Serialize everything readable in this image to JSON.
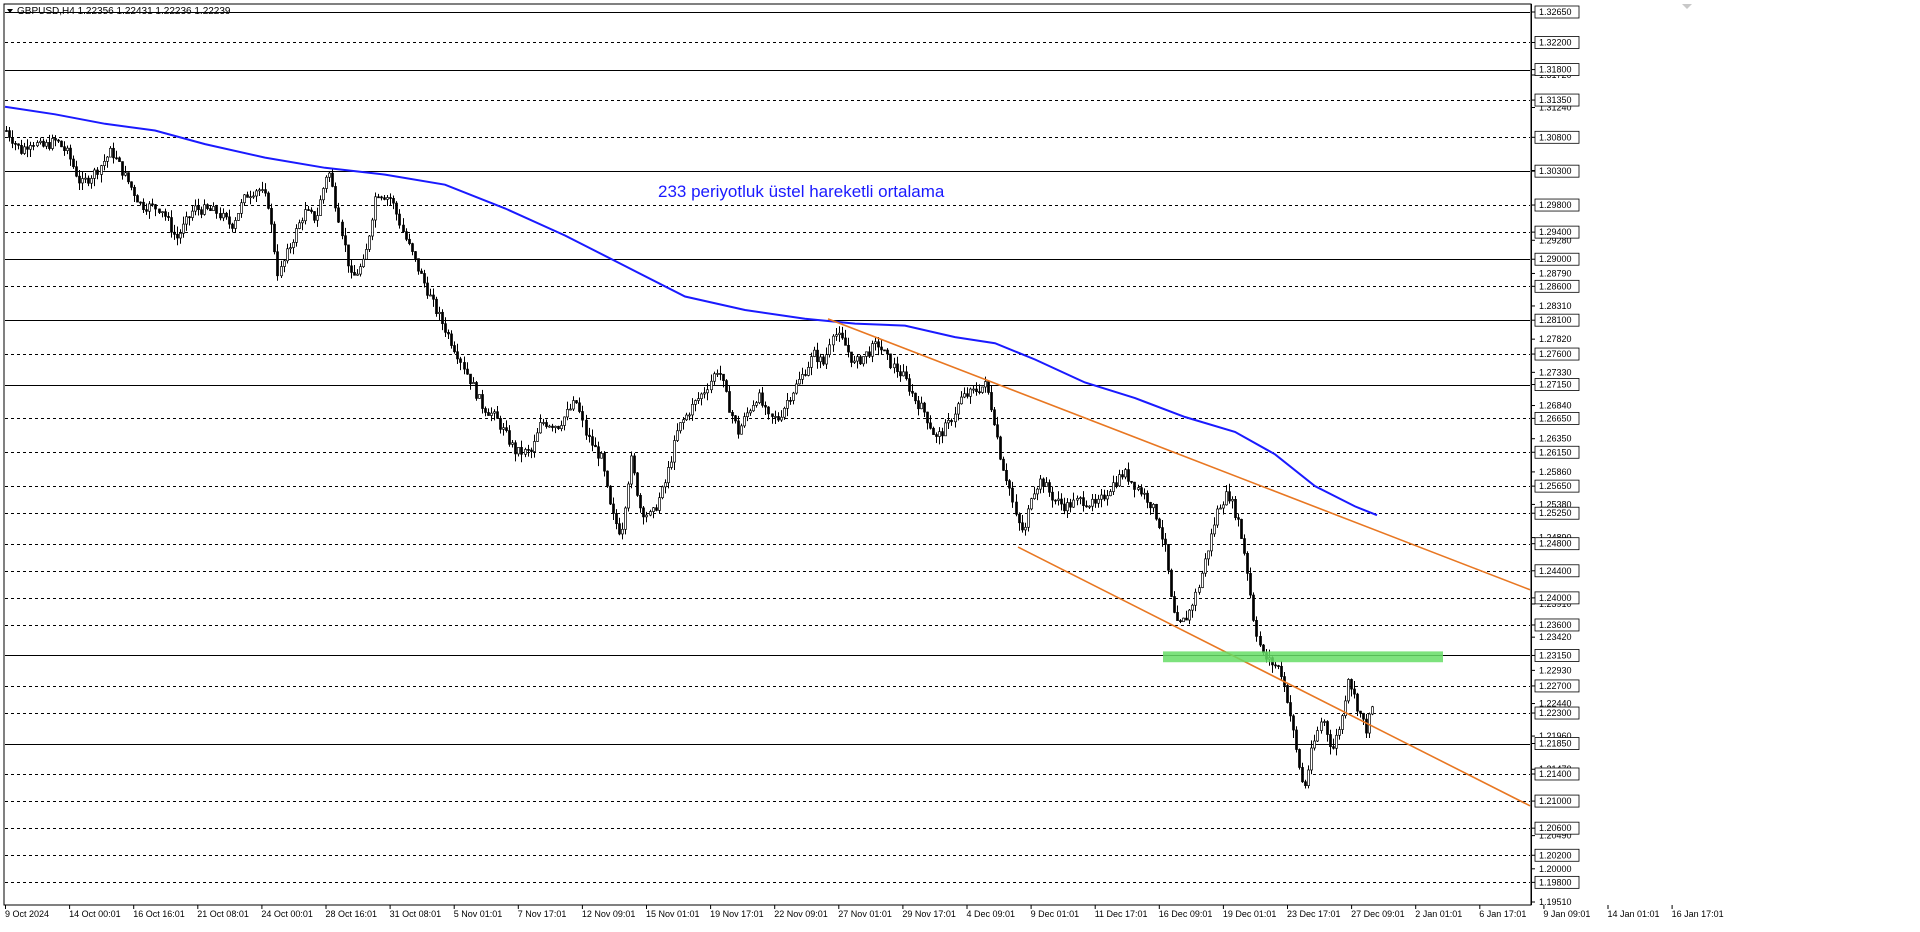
{
  "header": {
    "symbol": "GBPUSD,H4",
    "ohlc": "1.22356 1.22431 1.22236 1.22239",
    "text": "GBPUSD,H4  1.22356 1.22431 1.22236 1.22239"
  },
  "annotations": {
    "ema_text": "233 periyotluk üstel hareketli ortalama"
  },
  "colors": {
    "background": "#ffffff",
    "candle": "#000000",
    "ema": "#1a1aff",
    "channel": "#e87722",
    "support_zone": "#66dd66",
    "grid": "#000000"
  },
  "chart_data": {
    "type": "candlestick",
    "title": "GBPUSD,H4",
    "ylim": [
      1.1951,
      1.3265
    ],
    "grid": true,
    "y_ticks": [
      "1.32650",
      "1.32200",
      "1.31800",
      "1.31350",
      "1.30800",
      "1.30300",
      "1.29800",
      "1.29400",
      "1.29000",
      "1.28600",
      "1.28100",
      "1.27600",
      "1.27150",
      "1.26650",
      "1.26150",
      "1.25650",
      "1.25250",
      "1.24800",
      "1.24400",
      "1.24000",
      "1.23600",
      "1.23150",
      "1.22700",
      "1.22300",
      "1.21850",
      "1.21400",
      "1.21000",
      "1.20600",
      "1.20200",
      "1.19800",
      "1.19510"
    ],
    "y_ticks_minor": [
      "1.31720",
      "1.31240",
      "1.30310",
      "1.29280",
      "1.28790",
      "1.28310",
      "1.27820",
      "1.27330",
      "1.26840",
      "1.26350",
      "1.25860",
      "1.25380",
      "1.24890",
      "1.23910",
      "1.23420",
      "1.22930",
      "1.22440",
      "1.21960",
      "1.21470",
      "1.20490",
      "1.20000"
    ],
    "solid_levels": [
      1.3265,
      1.318,
      1.303,
      1.29,
      1.281,
      1.2715,
      1.2315,
      1.2185
    ],
    "dashed_levels": [
      1.322,
      1.3135,
      1.308,
      1.298,
      1.294,
      1.286,
      1.276,
      1.2665,
      1.2615,
      1.2565,
      1.2525,
      1.248,
      1.244,
      1.24,
      1.236,
      1.227,
      1.223,
      1.214,
      1.21,
      1.206,
      1.202,
      1.198
    ],
    "x_labels": [
      "9 Oct 2024",
      "14 Oct 00:01",
      "16 Oct 16:01",
      "21 Oct 08:01",
      "24 Oct 00:01",
      "28 Oct 16:01",
      "31 Oct 08:01",
      "5 Nov 01:01",
      "7 Nov 17:01",
      "12 Nov 09:01",
      "15 Nov 01:01",
      "19 Nov 17:01",
      "22 Nov 09:01",
      "27 Nov 01:01",
      "29 Nov 17:01",
      "4 Dec 09:01",
      "9 Dec 01:01",
      "11 Dec 17:01",
      "16 Dec 09:01",
      "19 Dec 01:01",
      "23 Dec 17:01",
      "27 Dec 09:01",
      "2 Jan 01:01",
      "6 Jan 17:01",
      "9 Jan 09:01",
      "14 Jan 01:01",
      "16 Jan 17:01"
    ],
    "price_path": [
      [
        0,
        1.309
      ],
      [
        15,
        1.306
      ],
      [
        25,
        1.3075
      ],
      [
        35,
        1.3065
      ],
      [
        50,
        1.3075
      ],
      [
        62,
        1.3055
      ],
      [
        75,
        1.301
      ],
      [
        90,
        1.303
      ],
      [
        105,
        1.306
      ],
      [
        118,
        1.3025
      ],
      [
        135,
        1.298
      ],
      [
        155,
        1.2975
      ],
      [
        170,
        1.293
      ],
      [
        188,
        1.2975
      ],
      [
        210,
        1.297
      ],
      [
        225,
        1.295
      ],
      [
        240,
        1.2995
      ],
      [
        252,
        1.3005
      ],
      [
        262,
        1.2985
      ],
      [
        272,
        1.2875
      ],
      [
        285,
        1.2925
      ],
      [
        298,
        1.297
      ],
      [
        310,
        1.296
      ],
      [
        322,
        1.3035
      ],
      [
        335,
        1.2945
      ],
      [
        345,
        1.287
      ],
      [
        358,
        1.2895
      ],
      [
        370,
        1.3
      ],
      [
        385,
        1.299
      ],
      [
        398,
        1.2935
      ],
      [
        412,
        1.2885
      ],
      [
        428,
        1.283
      ],
      [
        440,
        1.2795
      ],
      [
        455,
        1.275
      ],
      [
        475,
        1.2685
      ],
      [
        490,
        1.2665
      ],
      [
        510,
        1.2615
      ],
      [
        525,
        1.2615
      ],
      [
        535,
        1.266
      ],
      [
        552,
        1.2655
      ],
      [
        570,
        1.269
      ],
      [
        580,
        1.264
      ],
      [
        595,
        1.2605
      ],
      [
        605,
        1.2525
      ],
      [
        615,
        1.2495
      ],
      [
        625,
        1.2605
      ],
      [
        635,
        1.253
      ],
      [
        645,
        1.252
      ],
      [
        658,
        1.2565
      ],
      [
        672,
        1.265
      ],
      [
        685,
        1.268
      ],
      [
        698,
        1.2705
      ],
      [
        712,
        1.274
      ],
      [
        722,
        1.2685
      ],
      [
        732,
        1.2645
      ],
      [
        742,
        1.2675
      ],
      [
        752,
        1.27
      ],
      [
        762,
        1.2665
      ],
      [
        772,
        1.2665
      ],
      [
        782,
        1.2695
      ],
      [
        795,
        1.2725
      ],
      [
        808,
        1.276
      ],
      [
        818,
        1.2745
      ],
      [
        826,
        1.2795
      ],
      [
        838,
        1.2775
      ],
      [
        848,
        1.2745
      ],
      [
        860,
        1.276
      ],
      [
        872,
        1.2775
      ],
      [
        885,
        1.2745
      ],
      [
        898,
        1.2725
      ],
      [
        908,
        1.2695
      ],
      [
        918,
        1.2675
      ],
      [
        930,
        1.2635
      ],
      [
        942,
        1.2655
      ],
      [
        955,
        1.2695
      ],
      [
        968,
        1.2705
      ],
      [
        980,
        1.2715
      ],
      [
        988,
        1.2665
      ],
      [
        995,
        1.2605
      ],
      [
        1003,
        1.2565
      ],
      [
        1010,
        1.2515
      ],
      [
        1018,
        1.2495
      ],
      [
        1025,
        1.2555
      ],
      [
        1035,
        1.2575
      ],
      [
        1048,
        1.2545
      ],
      [
        1060,
        1.2535
      ],
      [
        1075,
        1.2545
      ],
      [
        1090,
        1.2535
      ],
      [
        1105,
        1.2565
      ],
      [
        1118,
        1.2585
      ],
      [
        1130,
        1.2565
      ],
      [
        1142,
        1.2545
      ],
      [
        1152,
        1.2515
      ],
      [
        1160,
        1.2465
      ],
      [
        1166,
        1.2385
      ],
      [
        1172,
        1.2355
      ],
      [
        1182,
        1.2375
      ],
      [
        1192,
        1.2415
      ],
      [
        1202,
        1.2475
      ],
      [
        1212,
        1.2535
      ],
      [
        1222,
        1.2555
      ],
      [
        1232,
        1.2515
      ],
      [
        1240,
        1.2455
      ],
      [
        1248,
        1.2365
      ],
      [
        1256,
        1.2315
      ],
      [
        1264,
        1.2305
      ],
      [
        1274,
        1.2295
      ],
      [
        1282,
        1.2245
      ],
      [
        1290,
        1.2175
      ],
      [
        1298,
        1.2115
      ],
      [
        1306,
        1.2175
      ],
      [
        1316,
        1.2225
      ],
      [
        1326,
        1.2175
      ],
      [
        1336,
        1.2225
      ],
      [
        1342,
        1.2285
      ],
      [
        1350,
        1.2245
      ],
      [
        1360,
        1.2205
      ],
      [
        1368,
        1.2245
      ],
      [
        1375,
        1.2235
      ]
    ],
    "ema": {
      "name": "233 periyotluk üstel hareketli ortalama",
      "points": [
        [
          0,
          1.3125
        ],
        [
          50,
          1.3114
        ],
        [
          100,
          1.31
        ],
        [
          150,
          1.309
        ],
        [
          200,
          1.307
        ],
        [
          260,
          1.305
        ],
        [
          320,
          1.3035
        ],
        [
          380,
          1.3025
        ],
        [
          440,
          1.301
        ],
        [
          500,
          1.2975
        ],
        [
          560,
          1.2935
        ],
        [
          620,
          1.289
        ],
        [
          680,
          1.2845
        ],
        [
          740,
          1.2825
        ],
        [
          800,
          1.2812
        ],
        [
          850,
          1.2805
        ],
        [
          900,
          1.2802
        ],
        [
          950,
          1.2785
        ],
        [
          990,
          1.2776
        ],
        [
          1030,
          1.2752
        ],
        [
          1080,
          1.2718
        ],
        [
          1130,
          1.2695
        ],
        [
          1180,
          1.2667
        ],
        [
          1230,
          1.2645
        ],
        [
          1270,
          1.2612
        ],
        [
          1310,
          1.2565
        ],
        [
          1350,
          1.2535
        ],
        [
          1372,
          1.2522
        ]
      ]
    },
    "channel_upper": [
      [
        828,
        1.2812
      ],
      [
        1530,
        1.2412
      ]
    ],
    "channel_lower": [
      [
        1018,
        1.2475
      ],
      [
        1530,
        1.2093
      ]
    ],
    "support_zone": {
      "x": [
        1163,
        1443
      ],
      "y": [
        1.2305,
        1.2321
      ]
    }
  }
}
